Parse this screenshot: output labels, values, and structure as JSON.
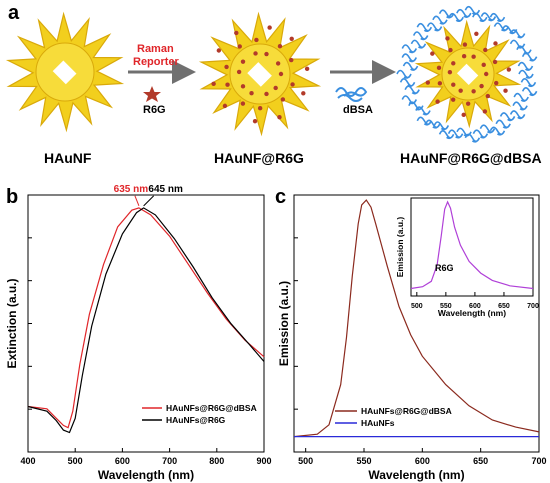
{
  "panel_a": {
    "letter": "a",
    "labels": {
      "nanoflower": "HAuNF",
      "nanoflower_r6g": "HAuNF@R6G",
      "nanoflower_r6g_dbsa": "HAuNF@R6G@dBSA",
      "reporter_line1": "Raman",
      "reporter_line2": "Reporter",
      "r6g": "R6G",
      "dbsa": "dBSA"
    },
    "colors": {
      "gold": "#f2cf1d",
      "gold_dark": "#d9a90a",
      "star": "#b23a2a",
      "protein": "#3a8fe0",
      "arrow": "#707070"
    }
  },
  "chart_data": [
    {
      "type": "line",
      "panel": "b",
      "xlabel": "Wavelength (nm)",
      "ylabel": "Extinction (a.u.)",
      "xlim": [
        400,
        900
      ],
      "xticks": [
        "400",
        "500",
        "600",
        "700",
        "800",
        "900"
      ],
      "annotations": [
        {
          "text": "635 nm",
          "x": 635,
          "color": "#e0262a"
        },
        {
          "text": "645 nm",
          "x": 645,
          "color": "#000000"
        }
      ],
      "legend": "bottom-right",
      "series": [
        {
          "name": "HAuNFs@R6G@dBSA",
          "color": "#e0262a",
          "x": [
            400,
            440,
            460,
            475,
            485,
            495,
            510,
            530,
            560,
            590,
            620,
            635,
            660,
            700,
            740,
            780,
            820,
            860,
            900
          ],
          "y": [
            0.16,
            0.15,
            0.11,
            0.08,
            0.07,
            0.14,
            0.34,
            0.55,
            0.76,
            0.92,
            0.99,
            1.0,
            0.97,
            0.88,
            0.76,
            0.64,
            0.53,
            0.44,
            0.37
          ]
        },
        {
          "name": "HAuNFs@R6G",
          "color": "#000000",
          "x": [
            400,
            440,
            460,
            475,
            488,
            500,
            515,
            535,
            565,
            600,
            630,
            645,
            670,
            710,
            750,
            790,
            830,
            870,
            900
          ],
          "y": [
            0.16,
            0.14,
            0.1,
            0.06,
            0.05,
            0.11,
            0.29,
            0.5,
            0.72,
            0.89,
            0.98,
            1.0,
            0.97,
            0.87,
            0.75,
            0.62,
            0.51,
            0.42,
            0.35
          ]
        }
      ]
    },
    {
      "type": "line",
      "panel": "c",
      "xlabel": "Wavelength (nm)",
      "ylabel": "Emission (a.u.)",
      "xlim": [
        490,
        700
      ],
      "xticks": [
        "500",
        "550",
        "600",
        "650",
        "700"
      ],
      "legend": "bottom-center",
      "series": [
        {
          "name": "HAuNFs@R6G@dBSA",
          "color": "#8b2a1e",
          "x": [
            490,
            510,
            520,
            530,
            535,
            540,
            545,
            548,
            552,
            556,
            560,
            570,
            580,
            590,
            600,
            620,
            640,
            660,
            680,
            700
          ],
          "y": [
            0.0,
            0.01,
            0.05,
            0.22,
            0.42,
            0.68,
            0.9,
            0.98,
            1.0,
            0.97,
            0.9,
            0.72,
            0.55,
            0.43,
            0.34,
            0.22,
            0.13,
            0.07,
            0.04,
            0.02
          ]
        },
        {
          "name": "HAuNFs",
          "color": "#2a2ad8",
          "x": [
            490,
            550,
            600,
            650,
            700
          ],
          "y": [
            0.0,
            0.0,
            0.0,
            0.0,
            0.0
          ]
        }
      ],
      "inset": {
        "type": "line",
        "label": "R6G",
        "xlabel": "Wavelength (nm)",
        "ylabel": "Emission (a.u.)",
        "xlim": [
          490,
          700
        ],
        "xticks": [
          "500",
          "550",
          "600",
          "650",
          "700"
        ],
        "series": [
          {
            "name": "R6G",
            "color": "#b040d8",
            "x": [
              490,
              510,
              525,
              535,
              542,
              548,
              553,
              558,
              565,
              575,
              590,
              610,
              630,
              660,
              700
            ],
            "y": [
              0.04,
              0.06,
              0.12,
              0.3,
              0.62,
              0.92,
              1.0,
              0.93,
              0.72,
              0.52,
              0.34,
              0.21,
              0.13,
              0.07,
              0.04
            ]
          }
        ]
      }
    }
  ]
}
